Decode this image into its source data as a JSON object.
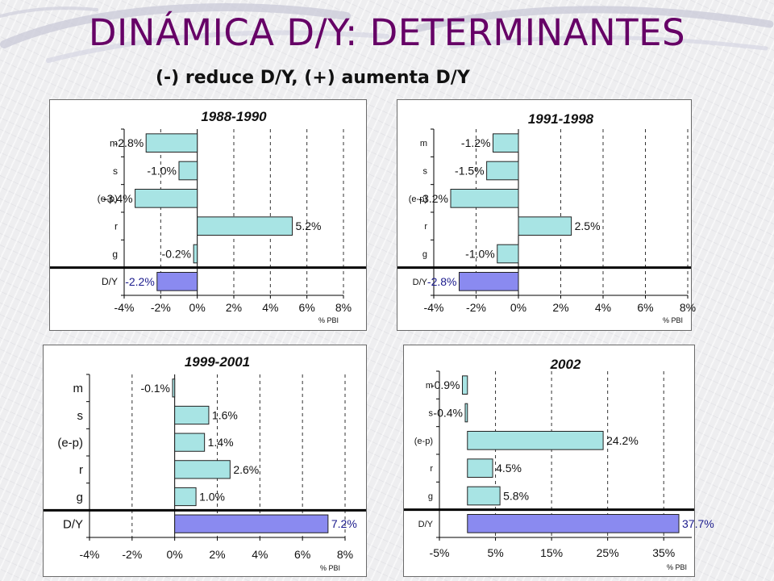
{
  "slide": {
    "title": "DINÁMICA D/Y: DETERMINANTES",
    "subtitle": "(-) reduce D/Y, (+) aumenta D/Y"
  },
  "colors": {
    "title": "#660066",
    "bar_fill": "#a8e4e4",
    "highlight_fill": "#8a8af0",
    "highlight_text": "#1a1a8c",
    "bar_stroke": "#222222",
    "separator": "#000000"
  },
  "chart_data": [
    {
      "type": "bar",
      "orientation": "horizontal",
      "title": "1988-1990",
      "categories": [
        "m",
        "s",
        "(e-p)",
        "r",
        "g",
        "D/Y"
      ],
      "values": [
        -2.8,
        -1.0,
        -3.4,
        5.2,
        -0.2,
        -2.2
      ],
      "value_labels": [
        "-2.8%",
        "-1.0%",
        "-3.4%",
        "5.2%",
        "-0.2%",
        "-2.2%"
      ],
      "highlight_category": "D/Y",
      "xlim": [
        -4,
        8
      ],
      "xticks": [
        -4,
        -2,
        0,
        2,
        4,
        6,
        8
      ],
      "xtick_labels": [
        "-4%",
        "-2%",
        "0%",
        "2%",
        "4%",
        "6%",
        "8%"
      ],
      "unit_label": "% PBI",
      "grid": "vertical dashed"
    },
    {
      "type": "bar",
      "orientation": "horizontal",
      "title": "1991-1998",
      "categories": [
        "m",
        "s",
        "(e-p)",
        "r",
        "g",
        "D/Y"
      ],
      "values": [
        -1.2,
        -1.5,
        -3.2,
        2.5,
        -1.0,
        -2.8
      ],
      "value_labels": [
        "-1.2%",
        "-1.5%",
        "-3.2%",
        "2.5%",
        "-1.0%",
        "-2.8%"
      ],
      "highlight_category": "D/Y",
      "xlim": [
        -4,
        8
      ],
      "xticks": [
        -4,
        -2,
        0,
        2,
        4,
        6,
        8
      ],
      "xtick_labels": [
        "-4%",
        "-2%",
        "0%",
        "2%",
        "4%",
        "6%",
        "8%"
      ],
      "unit_label": "% PBI",
      "grid": "vertical dashed"
    },
    {
      "type": "bar",
      "orientation": "horizontal",
      "title": "1999-2001",
      "categories": [
        "m",
        "s",
        "(e-p)",
        "r",
        "g",
        "D/Y"
      ],
      "values": [
        -0.1,
        1.6,
        1.4,
        2.6,
        1.0,
        7.2
      ],
      "value_labels": [
        "-0.1%",
        "1.6%",
        "1.4%",
        "2.6%",
        "1.0%",
        "7.2%"
      ],
      "highlight_category": "D/Y",
      "xlim": [
        -4,
        8
      ],
      "xticks": [
        -4,
        -2,
        0,
        2,
        4,
        6,
        8
      ],
      "xtick_labels": [
        "-4%",
        "-2%",
        "0%",
        "2%",
        "4%",
        "6%",
        "8%"
      ],
      "unit_label": "% PBI",
      "grid": "vertical dashed"
    },
    {
      "type": "bar",
      "orientation": "horizontal",
      "title": "2002",
      "categories": [
        "m",
        "s",
        "(e-p)",
        "r",
        "g",
        "D/Y"
      ],
      "values": [
        -0.9,
        -0.4,
        24.2,
        4.5,
        5.8,
        37.7
      ],
      "value_labels": [
        "-0.9%",
        "-0.4%",
        "24.2%",
        "4.5%",
        "5.8%",
        "37.7%"
      ],
      "highlight_category": "D/Y",
      "xlim": [
        -5,
        40
      ],
      "xticks": [
        -5,
        5,
        15,
        25,
        35
      ],
      "xtick_labels": [
        "-5%",
        "5%",
        "15%",
        "25%",
        "35%"
      ],
      "unit_label": "% PBI",
      "grid": "vertical dashed"
    }
  ]
}
